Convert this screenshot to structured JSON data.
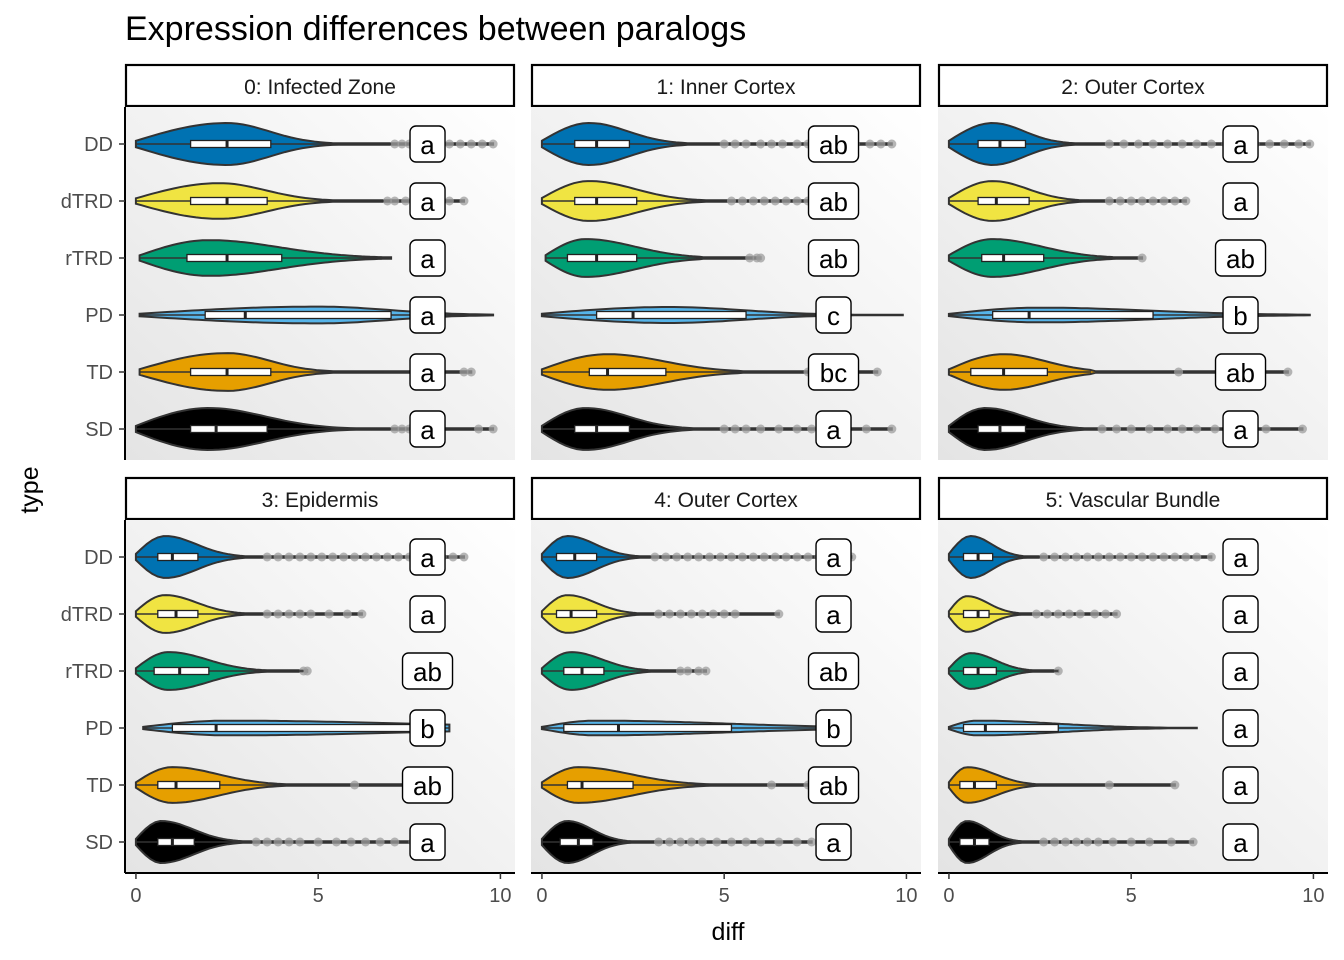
{
  "chart_data": {
    "type": "violin",
    "title": "Expression differences between paralogs",
    "xlabel": "diff",
    "ylabel": "type",
    "xlim": [
      -0.3,
      10.4
    ],
    "x_ticks": [
      0,
      5,
      10
    ],
    "x_tick_labels": [
      "0",
      "5",
      "10"
    ],
    "grid": false,
    "legend": "none",
    "categories": [
      "DD",
      "dTRD",
      "rTRD",
      "PD",
      "TD",
      "SD"
    ],
    "colors": {
      "DD": "#0072B2",
      "dTRD": "#F0E442",
      "rTRD": "#009E73",
      "PD": "#56B4E9",
      "TD": "#E69F00",
      "SD": "#000000"
    },
    "letter_x": 8,
    "panels": [
      {
        "title": "0: Infected Zone",
        "groups": [
          {
            "type": "DD",
            "min": 0,
            "q1": 1.5,
            "median": 2.5,
            "q3": 3.7,
            "whisker_hi": 7.0,
            "max": 9.8,
            "width": 1.0,
            "mode": 2.5,
            "letter": "a",
            "outliers": [
              7.1,
              7.3,
              7.5,
              7.8,
              8.0,
              8.3,
              8.6,
              8.9,
              9.2,
              9.5,
              9.8
            ]
          },
          {
            "type": "dTRD",
            "min": 0,
            "q1": 1.5,
            "median": 2.5,
            "q3": 3.6,
            "whisker_hi": 6.8,
            "max": 9.0,
            "width": 0.85,
            "mode": 2.3,
            "letter": "a",
            "outliers": [
              6.9,
              7.1,
              7.4,
              7.7,
              8.0,
              8.3,
              8.6,
              9.0
            ]
          },
          {
            "type": "rTRD",
            "min": 0.1,
            "q1": 1.4,
            "median": 2.5,
            "q3": 4.0,
            "whisker_hi": 7.0,
            "max": 7.0,
            "width": 0.85,
            "mode": 2.0,
            "letter": "a",
            "outliers": []
          },
          {
            "type": "PD",
            "min": 0.1,
            "q1": 1.9,
            "median": 3.0,
            "q3": 7.0,
            "whisker_hi": 9.8,
            "max": 9.8,
            "width": 0.4,
            "mode": 5.0,
            "letter": "a",
            "outliers": []
          },
          {
            "type": "TD",
            "min": 0.1,
            "q1": 1.5,
            "median": 2.5,
            "q3": 3.7,
            "whisker_hi": 6.8,
            "max": 9.2,
            "width": 0.9,
            "mode": 2.5,
            "letter": "a",
            "outliers": [
              9.0,
              9.2
            ]
          },
          {
            "type": "SD",
            "min": 0,
            "q1": 1.5,
            "median": 2.2,
            "q3": 3.6,
            "whisker_hi": 7.0,
            "max": 9.8,
            "width": 1.0,
            "mode": 2.0,
            "letter": "a",
            "outliers": [
              7.1,
              7.3,
              7.5,
              7.7,
              8.0,
              9.4,
              9.8
            ]
          }
        ]
      },
      {
        "title": "1: Inner Cortex",
        "groups": [
          {
            "type": "DD",
            "min": 0,
            "q1": 0.9,
            "median": 1.5,
            "q3": 2.4,
            "whisker_hi": 4.8,
            "max": 9.6,
            "width": 1.0,
            "mode": 1.3,
            "letter": "ab",
            "outliers": [
              5.0,
              5.3,
              5.6,
              6.0,
              6.3,
              6.6,
              7.0,
              7.3,
              7.6,
              8.0,
              8.3,
              8.6,
              9.0,
              9.3,
              9.6
            ]
          },
          {
            "type": "dTRD",
            "min": 0,
            "q1": 0.9,
            "median": 1.5,
            "q3": 2.6,
            "whisker_hi": 5.0,
            "max": 7.5,
            "width": 0.95,
            "mode": 1.3,
            "letter": "ab",
            "outliers": [
              5.2,
              5.5,
              5.8,
              6.1,
              6.4,
              6.7,
              7.0,
              7.3,
              7.5
            ]
          },
          {
            "type": "rTRD",
            "min": 0.1,
            "q1": 0.7,
            "median": 1.5,
            "q3": 2.6,
            "whisker_hi": 4.4,
            "max": 6.0,
            "width": 0.9,
            "mode": 1.2,
            "letter": "ab",
            "outliers": [
              5.7,
              5.9,
              6.0
            ]
          },
          {
            "type": "PD",
            "min": 0,
            "q1": 1.5,
            "median": 2.5,
            "q3": 5.6,
            "whisker_hi": 9.9,
            "max": 9.9,
            "width": 0.38,
            "mode": 3.5,
            "letter": "c",
            "outliers": []
          },
          {
            "type": "TD",
            "min": 0,
            "q1": 1.3,
            "median": 1.8,
            "q3": 3.4,
            "whisker_hi": 5.5,
            "max": 9.2,
            "width": 0.85,
            "mode": 1.8,
            "letter": "bc",
            "outliers": [
              7.3,
              9.2
            ]
          },
          {
            "type": "SD",
            "min": 0,
            "q1": 0.9,
            "median": 1.5,
            "q3": 2.4,
            "whisker_hi": 4.8,
            "max": 9.6,
            "width": 1.0,
            "mode": 1.2,
            "letter": "a",
            "outliers": [
              5.0,
              5.3,
              5.6,
              6.0,
              6.5,
              7.0,
              7.4,
              7.9,
              8.2,
              8.9,
              9.6
            ]
          }
        ]
      },
      {
        "title": "2: Outer Cortex",
        "groups": [
          {
            "type": "DD",
            "min": 0,
            "q1": 0.8,
            "median": 1.4,
            "q3": 2.1,
            "whisker_hi": 4.2,
            "max": 9.9,
            "width": 1.0,
            "mode": 1.2,
            "letter": "a",
            "outliers": [
              4.4,
              4.8,
              5.2,
              5.6,
              6.0,
              6.4,
              6.8,
              7.2,
              7.6,
              8.0,
              8.4,
              8.8,
              9.2,
              9.6,
              9.9
            ]
          },
          {
            "type": "dTRD",
            "min": 0,
            "q1": 0.8,
            "median": 1.3,
            "q3": 2.2,
            "whisker_hi": 4.2,
            "max": 6.5,
            "width": 0.95,
            "mode": 1.2,
            "letter": "a",
            "outliers": [
              4.4,
              4.7,
              5.0,
              5.3,
              5.6,
              5.9,
              6.2,
              6.5
            ]
          },
          {
            "type": "rTRD",
            "min": 0,
            "q1": 0.9,
            "median": 1.5,
            "q3": 2.6,
            "whisker_hi": 5.0,
            "max": 5.3,
            "width": 0.9,
            "mode": 1.2,
            "letter": "ab",
            "outliers": [
              5.3
            ]
          },
          {
            "type": "PD",
            "min": 0,
            "q1": 1.2,
            "median": 2.2,
            "q3": 5.6,
            "whisker_hi": 9.9,
            "max": 9.9,
            "width": 0.35,
            "mode": 2.5,
            "letter": "b",
            "outliers": []
          },
          {
            "type": "TD",
            "min": 0,
            "q1": 0.6,
            "median": 1.5,
            "q3": 2.7,
            "whisker_hi": 3.9,
            "max": 9.3,
            "width": 0.85,
            "mode": 1.5,
            "letter": "ab",
            "outliers": [
              6.3,
              9.3
            ]
          },
          {
            "type": "SD",
            "min": 0,
            "q1": 0.8,
            "median": 1.4,
            "q3": 2.1,
            "whisker_hi": 4.0,
            "max": 9.7,
            "width": 1.0,
            "mode": 1.0,
            "letter": "a",
            "outliers": [
              4.2,
              4.6,
              5.0,
              5.5,
              6.0,
              6.4,
              6.8,
              7.3,
              7.8,
              8.2,
              8.7,
              9.7
            ]
          }
        ]
      },
      {
        "title": "3: Epidermis",
        "groups": [
          {
            "type": "DD",
            "min": 0,
            "q1": 0.6,
            "median": 1.0,
            "q3": 1.7,
            "whisker_hi": 3.5,
            "max": 9.0,
            "width": 1.0,
            "mode": 0.8,
            "letter": "a",
            "outliers": [
              3.6,
              3.9,
              4.2,
              4.5,
              4.8,
              5.1,
              5.4,
              5.7,
              6.0,
              6.3,
              6.6,
              6.9,
              7.2,
              7.5,
              7.8,
              8.1,
              8.4,
              8.7,
              9.0
            ]
          },
          {
            "type": "dTRD",
            "min": 0,
            "q1": 0.6,
            "median": 1.1,
            "q3": 1.7,
            "whisker_hi": 3.5,
            "max": 6.2,
            "width": 0.9,
            "mode": 0.8,
            "letter": "a",
            "outliers": [
              3.6,
              3.9,
              4.2,
              4.5,
              4.8,
              5.3,
              5.8,
              6.2
            ]
          },
          {
            "type": "rTRD",
            "min": 0,
            "q1": 0.5,
            "median": 1.2,
            "q3": 2.0,
            "whisker_hi": 4.6,
            "max": 4.7,
            "width": 0.9,
            "mode": 0.9,
            "letter": "ab",
            "outliers": [
              4.6,
              4.7
            ]
          },
          {
            "type": "PD",
            "min": 0.2,
            "q1": 1.0,
            "median": 2.2,
            "q3": 7.6,
            "whisker_hi": 8.6,
            "max": 8.6,
            "width": 0.35,
            "mode": 2.5,
            "letter": "b",
            "outliers": []
          },
          {
            "type": "TD",
            "min": 0,
            "q1": 0.6,
            "median": 1.1,
            "q3": 2.3,
            "whisker_hi": 4.5,
            "max": 7.5,
            "width": 0.85,
            "mode": 1.0,
            "letter": "ab",
            "outliers": [
              6.0,
              7.5
            ]
          },
          {
            "type": "SD",
            "min": 0,
            "q1": 0.6,
            "median": 1.0,
            "q3": 1.6,
            "whisker_hi": 3.2,
            "max": 8.0,
            "width": 1.0,
            "mode": 0.7,
            "letter": "a",
            "outliers": [
              3.3,
              3.6,
              3.9,
              4.2,
              4.5,
              5.0,
              5.5,
              5.9,
              6.3,
              6.7,
              7.1,
              7.6,
              8.0
            ]
          }
        ]
      },
      {
        "title": "4: Outer Cortex",
        "groups": [
          {
            "type": "DD",
            "min": 0,
            "q1": 0.4,
            "median": 0.9,
            "q3": 1.5,
            "whisker_hi": 3.0,
            "max": 8.5,
            "width": 1.0,
            "mode": 0.7,
            "letter": "a",
            "outliers": [
              3.1,
              3.4,
              3.7,
              4.0,
              4.3,
              4.6,
              4.9,
              5.2,
              5.5,
              5.8,
              6.1,
              6.4,
              6.7,
              7.0,
              7.3,
              7.6,
              7.9,
              8.2,
              8.5
            ]
          },
          {
            "type": "dTRD",
            "min": 0,
            "q1": 0.4,
            "median": 0.8,
            "q3": 1.5,
            "whisker_hi": 3.0,
            "max": 6.5,
            "width": 0.9,
            "mode": 0.7,
            "letter": "a",
            "outliers": [
              3.2,
              3.5,
              3.8,
              4.1,
              4.4,
              4.7,
              5.0,
              5.3,
              6.5
            ]
          },
          {
            "type": "rTRD",
            "min": 0,
            "q1": 0.6,
            "median": 1.1,
            "q3": 1.7,
            "whisker_hi": 3.3,
            "max": 4.5,
            "width": 0.9,
            "mode": 0.8,
            "letter": "ab",
            "outliers": [
              3.8,
              4.0,
              4.3,
              4.5
            ]
          },
          {
            "type": "PD",
            "min": 0,
            "q1": 0.6,
            "median": 2.1,
            "q3": 5.2,
            "whisker_hi": 7.6,
            "max": 7.6,
            "width": 0.35,
            "mode": 1.5,
            "letter": "b",
            "outliers": []
          },
          {
            "type": "TD",
            "min": 0,
            "q1": 0.7,
            "median": 1.1,
            "q3": 2.5,
            "whisker_hi": 4.5,
            "max": 7.5,
            "width": 0.85,
            "mode": 1.0,
            "letter": "ab",
            "outliers": [
              6.3,
              7.3
            ]
          },
          {
            "type": "SD",
            "min": 0,
            "q1": 0.5,
            "median": 1.0,
            "q3": 1.4,
            "whisker_hi": 3.0,
            "max": 7.4,
            "width": 1.0,
            "mode": 0.7,
            "letter": "a",
            "outliers": [
              3.2,
              3.5,
              3.8,
              4.1,
              4.4,
              4.8,
              5.2,
              5.6,
              6.0,
              6.5,
              7.0,
              7.4
            ]
          }
        ]
      },
      {
        "title": "5: Vascular Bundle",
        "groups": [
          {
            "type": "DD",
            "min": 0,
            "q1": 0.4,
            "median": 0.8,
            "q3": 1.2,
            "whisker_hi": 2.5,
            "max": 7.2,
            "width": 1.0,
            "mode": 0.6,
            "letter": "a",
            "outliers": [
              2.6,
              2.9,
              3.2,
              3.5,
              3.8,
              4.1,
              4.4,
              4.7,
              5.0,
              5.3,
              5.6,
              5.9,
              6.2,
              6.5,
              6.8,
              7.2
            ]
          },
          {
            "type": "dTRD",
            "min": 0,
            "q1": 0.4,
            "median": 0.8,
            "q3": 1.1,
            "whisker_hi": 2.2,
            "max": 4.6,
            "width": 0.85,
            "mode": 0.5,
            "letter": "a",
            "outliers": [
              2.4,
              2.7,
              3.0,
              3.3,
              3.6,
              4.0,
              4.3,
              4.6
            ]
          },
          {
            "type": "rTRD",
            "min": 0,
            "q1": 0.4,
            "median": 0.8,
            "q3": 1.3,
            "whisker_hi": 3.0,
            "max": 3.0,
            "width": 0.85,
            "mode": 0.6,
            "letter": "a",
            "outliers": [
              3.0
            ]
          },
          {
            "type": "PD",
            "min": 0,
            "q1": 0.4,
            "median": 1.0,
            "q3": 3.0,
            "whisker_hi": 6.8,
            "max": 6.8,
            "width": 0.35,
            "mode": 0.8,
            "letter": "a",
            "outliers": []
          },
          {
            "type": "TD",
            "min": 0,
            "q1": 0.3,
            "median": 0.7,
            "q3": 1.3,
            "whisker_hi": 2.5,
            "max": 6.2,
            "width": 0.85,
            "mode": 0.5,
            "letter": "a",
            "outliers": [
              4.4,
              6.2
            ]
          },
          {
            "type": "SD",
            "min": 0,
            "q1": 0.3,
            "median": 0.7,
            "q3": 1.1,
            "whisker_hi": 2.4,
            "max": 6.7,
            "width": 1.0,
            "mode": 0.5,
            "letter": "a",
            "outliers": [
              2.6,
              2.9,
              3.2,
              3.5,
              3.8,
              4.1,
              4.5,
              5.0,
              5.5,
              6.1,
              6.7
            ]
          }
        ]
      }
    ]
  }
}
